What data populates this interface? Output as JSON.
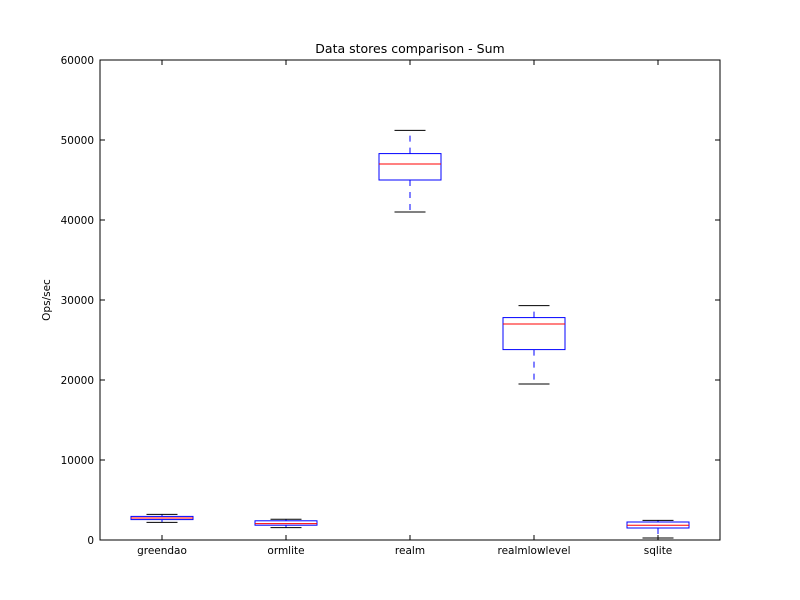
{
  "chart_data": {
    "type": "box",
    "title": "Data stores comparison - Sum",
    "xlabel": "",
    "ylabel": "Ops/sec",
    "ylim": [
      0,
      60000
    ],
    "yticks": [
      0,
      10000,
      20000,
      30000,
      40000,
      50000,
      60000
    ],
    "grid": false,
    "categories": [
      "greendao",
      "ormlite",
      "realm",
      "realmlowlevel",
      "sqlite"
    ],
    "boxes": [
      {
        "category": "greendao",
        "whisker_low": 2200,
        "q1": 2550,
        "median": 2750,
        "q3": 2950,
        "whisker_high": 3200
      },
      {
        "category": "ormlite",
        "whisker_low": 1550,
        "q1": 1850,
        "median": 2050,
        "q3": 2400,
        "whisker_high": 2600
      },
      {
        "category": "realm",
        "whisker_low": 41000,
        "q1": 45000,
        "median": 47000,
        "q3": 48300,
        "whisker_high": 51200
      },
      {
        "category": "realmlowlevel",
        "whisker_low": 19500,
        "q1": 23800,
        "median": 27000,
        "q3": 27800,
        "whisker_high": 29300
      },
      {
        "category": "sqlite",
        "whisker_low": 250,
        "q1": 1500,
        "median": 1850,
        "q3": 2250,
        "whisker_high": 2450
      }
    ],
    "colors": {
      "box": "#0000ff",
      "median": "#ff0000",
      "whisker": "#0000ff",
      "cap": "#000000",
      "axes": "#000000"
    }
  }
}
